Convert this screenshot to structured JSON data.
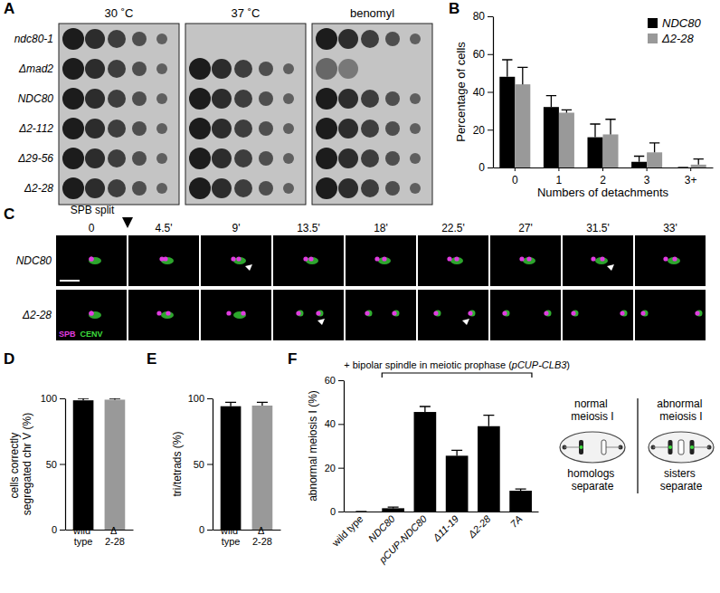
{
  "figure": {
    "panel_labels": [
      "A",
      "B",
      "C",
      "D",
      "E",
      "F"
    ],
    "panel_A": {
      "conditions": [
        "30 ˚C",
        "37 ˚C",
        "benomyl"
      ],
      "strains": [
        "ndc80-1",
        "Δmad2",
        "NDC80",
        "Δ2-112",
        "Δ29-56",
        "Δ2-28"
      ]
    },
    "panel_C": {
      "event": "SPB split",
      "times": [
        "0",
        "4.5'",
        "9'",
        "13.5'",
        "18'",
        "22.5'",
        "27'",
        "31.5'",
        "33'"
      ],
      "strains": [
        "NDC80",
        "Δ2-28"
      ],
      "channels": [
        {
          "name": "SPB",
          "color": "#e03ce0"
        },
        {
          "name": "CENV",
          "color": "#3cdc3c"
        }
      ]
    },
    "panel_F_schematic": {
      "left_title": "normal meiosis I",
      "right_title": "abnormal meiosis I",
      "left_caption": "homologs separate",
      "right_caption": "sisters separate"
    }
  },
  "chart_data": [
    {
      "type": "bar",
      "xlabel": "Numbers of detachments",
      "ylabel": "Percentage of cells",
      "categories": [
        "0",
        "1",
        "2",
        "3",
        "3+"
      ],
      "series": [
        {
          "name": "NDC80",
          "color": "#000000",
          "values": [
            48,
            32,
            16,
            3,
            0
          ],
          "errors": [
            9,
            6,
            7,
            3,
            0
          ]
        },
        {
          "name": "Δ2-28",
          "color": "#999999",
          "values": [
            44,
            29,
            17.5,
            8,
            1.5
          ],
          "errors": [
            9,
            1.5,
            8,
            5,
            3
          ]
        }
      ],
      "ylim": [
        0,
        80
      ],
      "yticks": [
        0,
        20,
        40,
        60,
        80
      ],
      "legend": "upper right"
    },
    {
      "type": "bar",
      "ylabel": "cells correctly segregated chr V (%)",
      "categories": [
        "wild type",
        "Δ 2-28"
      ],
      "values": [
        98.5,
        99
      ],
      "errors": [
        1.5,
        1
      ],
      "colors": [
        "#000000",
        "#999999"
      ],
      "ylim": [
        0,
        100
      ],
      "yticks": [
        0,
        50,
        100
      ]
    },
    {
      "type": "bar",
      "ylabel": "tri/tetrads (%)",
      "categories": [
        "wild type",
        "Δ 2-28"
      ],
      "values": [
        94,
        94.5
      ],
      "errors": [
        3,
        2.5
      ],
      "colors": [
        "#000000",
        "#999999"
      ],
      "ylim": [
        0,
        100
      ],
      "yticks": [
        0,
        50,
        100
      ]
    },
    {
      "type": "bar",
      "ylabel": "abnormal meiosis I (%)",
      "annotation": "+ bipolar spindle in meiotic prophase (pCUP-CLB3)",
      "categories": [
        "wild type",
        "NDC80",
        "pCUP-NDC80",
        "Δ11-19",
        "Δ2-28",
        "7A"
      ],
      "values": [
        0,
        1.5,
        45.5,
        25.5,
        39,
        9.5
      ],
      "errors": [
        0,
        0.5,
        2.5,
        2.5,
        5,
        0.8
      ],
      "color": "#000000",
      "ylim": [
        0,
        60
      ],
      "yticks": [
        0,
        20,
        40,
        60
      ]
    }
  ]
}
